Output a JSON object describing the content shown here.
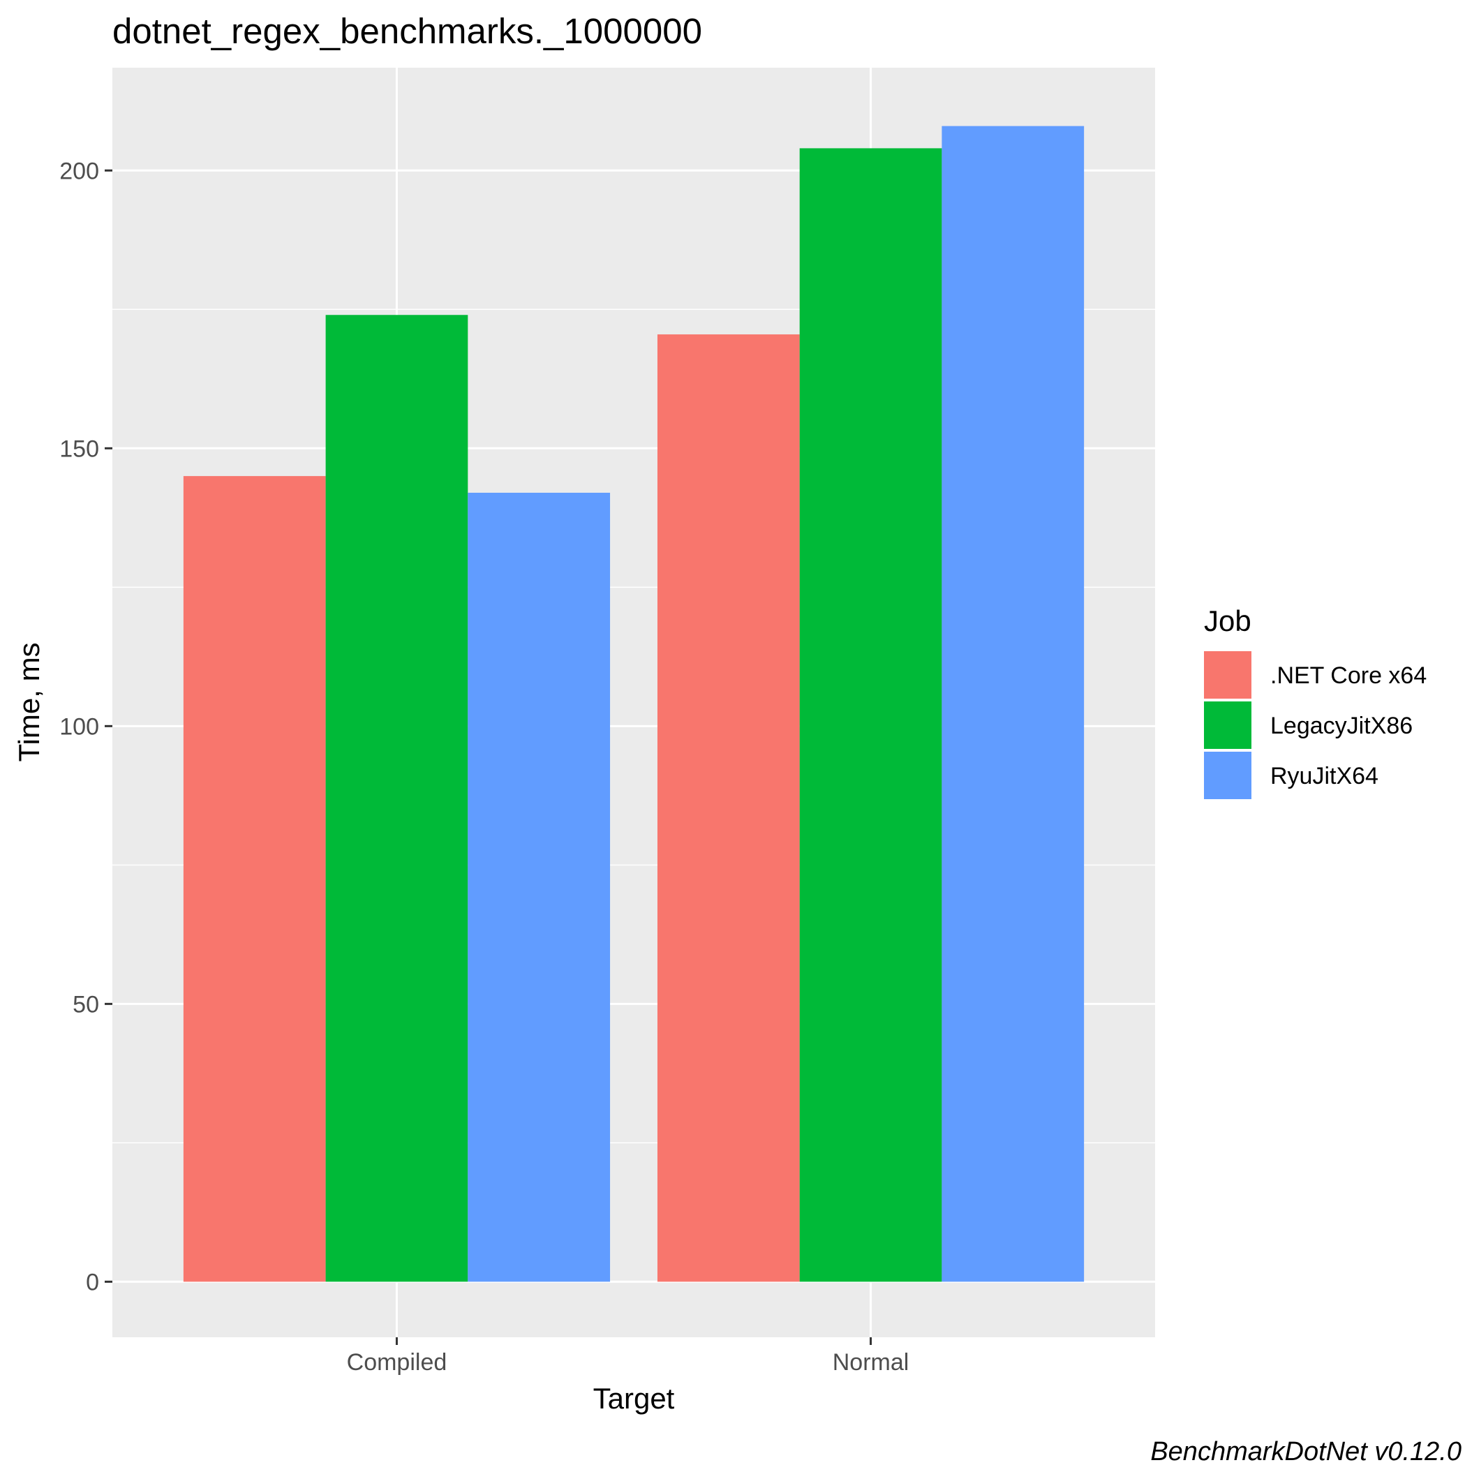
{
  "chart_data": {
    "type": "bar",
    "title": "dotnet_regex_benchmarks._1000000",
    "xlabel": "Target",
    "ylabel": "Time, ms",
    "categories": [
      "Compiled",
      "Normal"
    ],
    "series": [
      {
        "name": ".NET Core x64",
        "values": [
          145,
          170.5
        ],
        "color": "#F8766D"
      },
      {
        "name": "LegacyJitX86",
        "values": [
          174,
          204
        ],
        "color": "#00BA38"
      },
      {
        "name": "RyuJitX64",
        "values": [
          142,
          208
        ],
        "color": "#619CFF"
      }
    ],
    "ylim": [
      -10,
      218.5
    ],
    "yticks": [
      0,
      50,
      100,
      150,
      200
    ],
    "grid": true,
    "legend": {
      "title": "Job",
      "position": "right"
    },
    "caption": "BenchmarkDotNet v0.12.0",
    "colors": {
      "panel": "#EBEBEB",
      "grid": "#FFFFFF",
      "text": "#000000",
      "tick_text": "#4D4D4D",
      "tick": "#333333"
    }
  }
}
